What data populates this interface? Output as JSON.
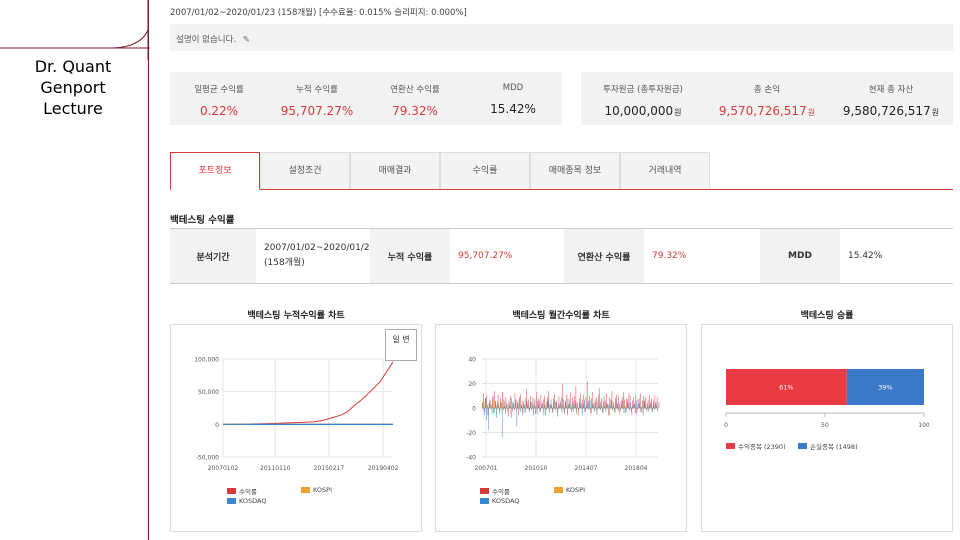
{
  "sidebar": {
    "brand_lines": [
      "Dr. Quant",
      "Genport",
      "Lecture"
    ]
  },
  "header": {
    "period": "2007/01/02~2020/01/23 (158개월) [수수료율: 0.015% 슬리피지: 0.000%]"
  },
  "description": {
    "text": "설명이 없습니다.",
    "edit_icon": "pencil-icon"
  },
  "stats_left": [
    {
      "label": "일평균 수익률",
      "value": "0.22%",
      "red": true
    },
    {
      "label": "누적 수익률",
      "value": "95,707.27%",
      "red": true
    },
    {
      "label": "연환산 수익률",
      "value": "79.32%",
      "red": true
    },
    {
      "label": "MDD",
      "value": "15.42%",
      "red": false
    }
  ],
  "stats_right": [
    {
      "label": "투자원금 (총투자원금)",
      "value": "10,000,000",
      "unit": "원",
      "red": false
    },
    {
      "label": "총 손익",
      "value": "9,570,726,517",
      "unit": "원",
      "red": true
    },
    {
      "label": "현재 총 자산",
      "value": "9,580,726,517",
      "unit": "원",
      "red": false
    }
  ],
  "tabs": [
    "포트정보",
    "설정조건",
    "매매결과",
    "수익률",
    "매매종목 정보",
    "거래내역"
  ],
  "active_tab": 0,
  "section_title": "백테스팅 수익률",
  "summary": {
    "period_label": "분석기간",
    "period_value": "2007/01/02~2020/01/23 (158개월)",
    "cum_label": "누적 수익률",
    "cum_value": "95,707.27%",
    "annual_label": "연환산 수익률",
    "annual_value": "79.32%",
    "mdd_label": "MDD",
    "mdd_value": "15.42%"
  },
  "panels": {
    "cum_title": "백테스팅 누적수익률 차트",
    "monthly_title": "백테스팅 월간수익률 차트",
    "winrate_title": "백테스팅 승률",
    "toggle_label": "일 변"
  },
  "colors": {
    "accent": "#d73a3a",
    "kospi": "#f0a030",
    "kosdaq": "#3a86d0",
    "loss": "#3a78c8",
    "sidebar_line": "#7a1a2a"
  },
  "chart_data": [
    {
      "type": "line",
      "title": "백테스팅 누적수익률 차트",
      "x_ticks": [
        "20070102",
        "20110110",
        "20150217",
        "20190402"
      ],
      "y_ticks": [
        "100,000",
        "50,000",
        "0",
        "-50,000"
      ],
      "ylim": [
        -50000,
        100000
      ],
      "series": [
        {
          "name": "수익률",
          "color": "#d73a3a",
          "x": [
            2007.0,
            2008.0,
            2009.0,
            2010.0,
            2011.0,
            2012.0,
            2013.0,
            2014.0,
            2014.5,
            2015.0,
            2015.5,
            2016.0,
            2016.5,
            2017.0,
            2017.5,
            2018.0,
            2018.5,
            2019.0,
            2019.5,
            2020.0
          ],
          "values": [
            0,
            200,
            500,
            900,
            1500,
            2200,
            3000,
            4000,
            5500,
            8000,
            11000,
            14000,
            19000,
            28000,
            36000,
            45000,
            55000,
            65000,
            80000,
            95707
          ]
        },
        {
          "name": "KOSPI",
          "color": "#f0a030",
          "x": [
            2007.0,
            2020.0
          ],
          "values": [
            0,
            200
          ]
        },
        {
          "name": "KOSDAQ",
          "color": "#3a86d0",
          "x": [
            2007.0,
            2020.0
          ],
          "values": [
            0,
            -100
          ]
        }
      ]
    },
    {
      "type": "bar",
      "title": "백테스팅 월간수익률 차트",
      "x_ticks": [
        "200701",
        "201010",
        "201407",
        "201804"
      ],
      "y_ticks": [
        "40",
        "20",
        "0",
        "-20",
        "-40"
      ],
      "ylim": [
        -40,
        40
      ],
      "series": [
        {
          "name": "수익률",
          "color": "#d73a3a",
          "values": [
            5,
            12,
            -3,
            8,
            10,
            -6,
            4,
            7,
            3,
            9,
            -4,
            14,
            6,
            2,
            11,
            -5,
            8,
            4,
            13,
            -2,
            6,
            9,
            3,
            -7,
            5,
            10,
            8,
            -3,
            4,
            12,
            7,
            5,
            -6,
            9,
            11,
            3,
            6,
            -4,
            8,
            15,
            4,
            7,
            -2,
            10,
            5,
            9,
            3,
            -5,
            13,
            6,
            8,
            -3,
            11,
            4,
            7,
            10,
            -6,
            5,
            9,
            14,
            3,
            7,
            -4,
            8,
            12,
            5,
            6,
            -3,
            10,
            4,
            9,
            20,
            7,
            -5,
            6,
            11,
            8,
            3,
            13,
            -4,
            9,
            6,
            10,
            18,
            5,
            -6,
            8,
            12,
            4,
            7,
            11,
            -3,
            9,
            22,
            6,
            10,
            -5,
            8,
            13,
            4,
            7,
            9,
            -2,
            11,
            16,
            5,
            8,
            -4,
            10,
            6,
            12,
            3,
            -6,
            9,
            7,
            14,
            5,
            -3,
            8,
            11,
            4,
            10,
            -5,
            6,
            9,
            13,
            7,
            -4,
            8,
            5,
            12,
            10,
            -3,
            6,
            9,
            4,
            11,
            -5,
            7,
            8,
            12,
            -4,
            6,
            10,
            5,
            9,
            -3,
            7,
            11,
            4,
            8,
            -2,
            6,
            10,
            5,
            9
          ]
        },
        {
          "name": "KOSPI",
          "color": "#f0a030",
          "values": [
            3,
            -2,
            5,
            -4,
            2,
            -6,
            4,
            1,
            -3,
            6,
            -2,
            3,
            -5,
            4,
            2,
            -1,
            3,
            -4,
            5,
            1,
            -3,
            2,
            -2,
            4,
            1,
            -5,
            3,
            2,
            -1,
            4,
            -3,
            2,
            5,
            -2,
            1,
            -4,
            3,
            2,
            -3,
            4,
            1,
            -2,
            3,
            -1,
            2,
            -4,
            5,
            1,
            -3,
            2,
            4,
            -2,
            1,
            3,
            -4,
            2,
            -1,
            3,
            5,
            -3,
            2,
            1,
            -2,
            4,
            -1,
            3,
            -5,
            2,
            1,
            4,
            -3,
            2,
            -2,
            3,
            1,
            -4,
            2,
            5,
            -1,
            3,
            -2,
            1,
            4,
            -3,
            2,
            -1,
            3,
            1,
            -4,
            2,
            5,
            -2,
            1,
            3,
            -1,
            4,
            -3,
            2,
            1,
            -2,
            3,
            -4,
            5,
            1,
            -1,
            2,
            -3,
            4,
            1,
            -2,
            3,
            2,
            -4,
            1,
            5,
            -1,
            2,
            -3,
            4,
            1,
            -2,
            3,
            -1,
            2,
            4,
            -3,
            1,
            -2,
            5,
            2,
            -1,
            3,
            -4,
            1,
            2,
            -3,
            4,
            -1,
            2,
            3,
            -2,
            1,
            -4,
            5,
            2,
            -1,
            3,
            -2,
            1,
            4,
            -3,
            2,
            -1,
            3,
            1,
            -2,
            4
          ]
        },
        {
          "name": "KOSDAQ",
          "color": "#3a86d0",
          "values": [
            4,
            -6,
            8,
            -10,
            3,
            -18,
            6,
            2,
            -5,
            10,
            -4,
            5,
            -8,
            6,
            3,
            -2,
            5,
            -24,
            7,
            2,
            -5,
            4,
            -3,
            6,
            2,
            -8,
            5,
            3,
            -2,
            6,
            -15,
            3,
            7,
            -3,
            2,
            -6,
            5,
            3,
            -4,
            6,
            2,
            -3,
            5,
            -2,
            3,
            -6,
            7,
            2,
            -5,
            3,
            6,
            -3,
            2,
            4,
            -6,
            3,
            -2,
            5,
            7,
            -4,
            3,
            2,
            -3,
            6,
            -2,
            4,
            -7,
            3,
            2,
            6,
            -4,
            3,
            -3,
            5,
            2,
            -6,
            3,
            7,
            -2,
            4,
            -3,
            2,
            6,
            -5,
            3,
            -2,
            5,
            2,
            -6,
            3,
            7,
            -3,
            2,
            4,
            -2,
            6,
            -4,
            3,
            2,
            -3,
            5,
            -6,
            7,
            2,
            -2,
            3,
            -4,
            6,
            2,
            -3,
            4,
            3,
            -6,
            2,
            7,
            -2,
            3,
            -4,
            6,
            2,
            -3,
            4,
            -2,
            3,
            6,
            -4,
            2,
            -3,
            7,
            3,
            -2,
            4,
            -6,
            2,
            3,
            -4,
            6,
            -2,
            3,
            4,
            -3,
            2,
            -6,
            7,
            3,
            -2,
            4,
            -3,
            2,
            6,
            -4,
            3,
            -2,
            4,
            2,
            -3,
            5
          ]
        }
      ]
    },
    {
      "type": "bar",
      "title": "백테스팅 승률",
      "orientation": "horizontal-stacked",
      "x_ticks": [
        "0",
        "50",
        "100"
      ],
      "xlim": [
        0,
        100
      ],
      "series": [
        {
          "name": "수익종목 (2390)",
          "value": 61,
          "label": "61%",
          "color": "#ea3a42"
        },
        {
          "name": "손실종목 (1498)",
          "value": 39,
          "label": "39%",
          "color": "#3a78c8"
        }
      ]
    }
  ]
}
